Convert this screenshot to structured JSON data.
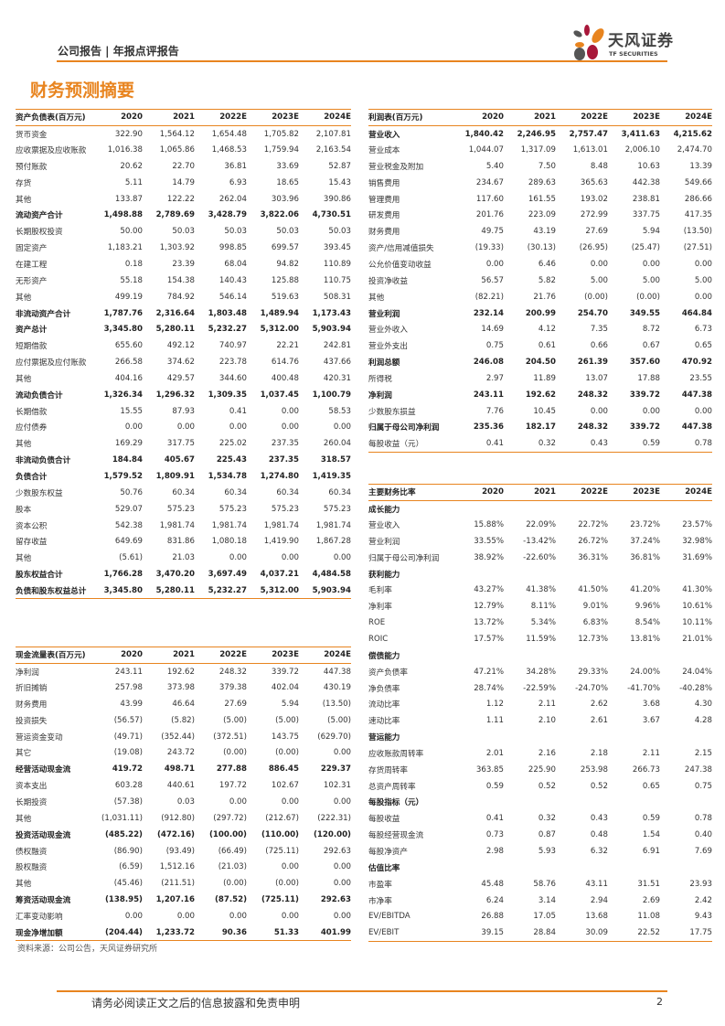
{
  "header": {
    "report_type": "公司报告 | 年报点评报告",
    "logo_cn": "天风证券",
    "logo_en": "TF SECURITIES"
  },
  "title": "财务预测摘要",
  "years": [
    "2020",
    "2021",
    "2022E",
    "2023E",
    "2024E"
  ],
  "balance_sheet": {
    "title": "资产负债表(百万元)",
    "rows": [
      {
        "label": "货币资金",
        "values": [
          "322.90",
          "1,564.12",
          "1,654.48",
          "1,705.82",
          "2,107.81"
        ]
      },
      {
        "label": "应收票据及应收账款",
        "values": [
          "1,016.38",
          "1,065.86",
          "1,468.53",
          "1,759.94",
          "2,163.54"
        ]
      },
      {
        "label": "预付账款",
        "values": [
          "20.62",
          "22.70",
          "36.81",
          "33.69",
          "52.87"
        ]
      },
      {
        "label": "存货",
        "values": [
          "5.11",
          "14.79",
          "6.93",
          "18.65",
          "15.43"
        ]
      },
      {
        "label": "其他",
        "values": [
          "133.87",
          "122.22",
          "262.04",
          "303.96",
          "390.86"
        ]
      },
      {
        "label": "流动资产合计",
        "bold": true,
        "values": [
          "1,498.88",
          "2,789.69",
          "3,428.79",
          "3,822.06",
          "4,730.51"
        ]
      },
      {
        "label": "长期股权投资",
        "values": [
          "50.00",
          "50.03",
          "50.03",
          "50.03",
          "50.03"
        ]
      },
      {
        "label": "固定资产",
        "values": [
          "1,183.21",
          "1,303.92",
          "998.85",
          "699.57",
          "393.45"
        ]
      },
      {
        "label": "在建工程",
        "values": [
          "0.18",
          "23.39",
          "68.04",
          "94.82",
          "110.89"
        ]
      },
      {
        "label": "无形资产",
        "values": [
          "55.18",
          "154.38",
          "140.43",
          "125.88",
          "110.75"
        ]
      },
      {
        "label": "其他",
        "values": [
          "499.19",
          "784.92",
          "546.14",
          "519.63",
          "508.31"
        ]
      },
      {
        "label": "非流动资产合计",
        "bold": true,
        "values": [
          "1,787.76",
          "2,316.64",
          "1,803.48",
          "1,489.94",
          "1,173.43"
        ]
      },
      {
        "label": "资产总计",
        "bold": true,
        "values": [
          "3,345.80",
          "5,280.11",
          "5,232.27",
          "5,312.00",
          "5,903.94"
        ]
      },
      {
        "label": "短期借款",
        "values": [
          "655.60",
          "492.12",
          "740.97",
          "22.21",
          "242.81"
        ]
      },
      {
        "label": "应付票据及应付账款",
        "values": [
          "266.58",
          "374.62",
          "223.78",
          "614.76",
          "437.66"
        ]
      },
      {
        "label": "其他",
        "values": [
          "404.16",
          "429.57",
          "344.60",
          "400.48",
          "420.31"
        ]
      },
      {
        "label": "流动负债合计",
        "bold": true,
        "values": [
          "1,326.34",
          "1,296.32",
          "1,309.35",
          "1,037.45",
          "1,100.79"
        ]
      },
      {
        "label": "长期借款",
        "values": [
          "15.55",
          "87.93",
          "0.41",
          "0.00",
          "58.53"
        ]
      },
      {
        "label": "应付债券",
        "values": [
          "0.00",
          "0.00",
          "0.00",
          "0.00",
          "0.00"
        ]
      },
      {
        "label": "其他",
        "values": [
          "169.29",
          "317.75",
          "225.02",
          "237.35",
          "260.04"
        ]
      },
      {
        "label": "非流动负债合计",
        "bold": true,
        "values": [
          "184.84",
          "405.67",
          "225.43",
          "237.35",
          "318.57"
        ]
      },
      {
        "label": "负债合计",
        "bold": true,
        "values": [
          "1,579.52",
          "1,809.91",
          "1,534.78",
          "1,274.80",
          "1,419.35"
        ]
      },
      {
        "label": "少数股东权益",
        "values": [
          "50.76",
          "60.34",
          "60.34",
          "60.34",
          "60.34"
        ]
      },
      {
        "label": "股本",
        "values": [
          "529.07",
          "575.23",
          "575.23",
          "575.23",
          "575.23"
        ]
      },
      {
        "label": "资本公积",
        "values": [
          "542.38",
          "1,981.74",
          "1,981.74",
          "1,981.74",
          "1,981.74"
        ]
      },
      {
        "label": "留存收益",
        "values": [
          "649.69",
          "831.86",
          "1,080.18",
          "1,419.90",
          "1,867.28"
        ]
      },
      {
        "label": "其他",
        "values": [
          "(5.61)",
          "21.03",
          "0.00",
          "0.00",
          "0.00"
        ]
      },
      {
        "label": "股东权益合计",
        "bold": true,
        "values": [
          "1,766.28",
          "3,470.20",
          "3,697.49",
          "4,037.21",
          "4,484.58"
        ]
      },
      {
        "label": "负债和股东权益总计",
        "bold": true,
        "values": [
          "3,345.80",
          "5,280.11",
          "5,232.27",
          "5,312.00",
          "5,903.94"
        ]
      }
    ]
  },
  "income_statement": {
    "title": "利润表(百万元)",
    "rows": [
      {
        "label": "营业收入",
        "bold": true,
        "values": [
          "1,840.42",
          "2,246.95",
          "2,757.47",
          "3,411.63",
          "4,215.62"
        ]
      },
      {
        "label": "营业成本",
        "values": [
          "1,044.07",
          "1,317.09",
          "1,613.01",
          "2,006.10",
          "2,474.70"
        ]
      },
      {
        "label": "营业税金及附加",
        "values": [
          "5.40",
          "7.50",
          "8.48",
          "10.63",
          "13.39"
        ]
      },
      {
        "label": "销售费用",
        "values": [
          "234.67",
          "289.63",
          "365.63",
          "442.38",
          "549.66"
        ]
      },
      {
        "label": "管理费用",
        "values": [
          "117.60",
          "161.55",
          "193.02",
          "238.81",
          "286.66"
        ]
      },
      {
        "label": "研发费用",
        "values": [
          "201.76",
          "223.09",
          "272.99",
          "337.75",
          "417.35"
        ]
      },
      {
        "label": "财务费用",
        "values": [
          "49.75",
          "43.19",
          "27.69",
          "5.94",
          "(13.50)"
        ]
      },
      {
        "label": "资产/信用减值损失",
        "values": [
          "(19.33)",
          "(30.13)",
          "(26.95)",
          "(25.47)",
          "(27.51)"
        ]
      },
      {
        "label": "公允价值变动收益",
        "values": [
          "0.00",
          "6.46",
          "0.00",
          "0.00",
          "0.00"
        ]
      },
      {
        "label": "投资净收益",
        "values": [
          "56.57",
          "5.82",
          "5.00",
          "5.00",
          "5.00"
        ]
      },
      {
        "label": "其他",
        "values": [
          "(82.21)",
          "21.76",
          "(0.00)",
          "(0.00)",
          "0.00"
        ]
      },
      {
        "label": "营业利润",
        "bold": true,
        "values": [
          "232.14",
          "200.99",
          "254.70",
          "349.55",
          "464.84"
        ]
      },
      {
        "label": "营业外收入",
        "values": [
          "14.69",
          "4.12",
          "7.35",
          "8.72",
          "6.73"
        ]
      },
      {
        "label": "营业外支出",
        "values": [
          "0.75",
          "0.61",
          "0.66",
          "0.67",
          "0.65"
        ]
      },
      {
        "label": "利润总额",
        "bold": true,
        "values": [
          "246.08",
          "204.50",
          "261.39",
          "357.60",
          "470.92"
        ]
      },
      {
        "label": "所得税",
        "values": [
          "2.97",
          "11.89",
          "13.07",
          "17.88",
          "23.55"
        ]
      },
      {
        "label": "净利润",
        "bold": true,
        "values": [
          "243.11",
          "192.62",
          "248.32",
          "339.72",
          "447.38"
        ]
      },
      {
        "label": "少数股东损益",
        "values": [
          "7.76",
          "10.45",
          "0.00",
          "0.00",
          "0.00"
        ]
      },
      {
        "label": "归属于母公司净利润",
        "bold": true,
        "values": [
          "235.36",
          "182.17",
          "248.32",
          "339.72",
          "447.38"
        ]
      },
      {
        "label": "每股收益（元）",
        "values": [
          "0.41",
          "0.32",
          "0.43",
          "0.59",
          "0.78"
        ]
      }
    ]
  },
  "cash_flow": {
    "title": "现金流量表(百万元)",
    "rows": [
      {
        "label": "净利润",
        "values": [
          "243.11",
          "192.62",
          "248.32",
          "339.72",
          "447.38"
        ]
      },
      {
        "label": "折旧摊销",
        "values": [
          "257.98",
          "373.98",
          "379.38",
          "402.04",
          "430.19"
        ]
      },
      {
        "label": "财务费用",
        "values": [
          "43.99",
          "46.64",
          "27.69",
          "5.94",
          "(13.50)"
        ]
      },
      {
        "label": "投资损失",
        "values": [
          "(56.57)",
          "(5.82)",
          "(5.00)",
          "(5.00)",
          "(5.00)"
        ]
      },
      {
        "label": "营运资金变动",
        "values": [
          "(49.71)",
          "(352.44)",
          "(372.51)",
          "143.75",
          "(629.70)"
        ]
      },
      {
        "label": "其它",
        "values": [
          "(19.08)",
          "243.72",
          "(0.00)",
          "(0.00)",
          "0.00"
        ]
      },
      {
        "label": "经营活动现金流",
        "bold": true,
        "values": [
          "419.72",
          "498.71",
          "277.88",
          "886.45",
          "229.37"
        ]
      },
      {
        "label": "资本支出",
        "values": [
          "603.28",
          "440.61",
          "197.72",
          "102.67",
          "102.31"
        ]
      },
      {
        "label": "长期投资",
        "values": [
          "(57.38)",
          "0.03",
          "0.00",
          "0.00",
          "0.00"
        ]
      },
      {
        "label": "其他",
        "values": [
          "(1,031.11)",
          "(912.80)",
          "(297.72)",
          "(212.67)",
          "(222.31)"
        ]
      },
      {
        "label": "投资活动现金流",
        "bold": true,
        "values": [
          "(485.22)",
          "(472.16)",
          "(100.00)",
          "(110.00)",
          "(120.00)"
        ]
      },
      {
        "label": "债权融资",
        "values": [
          "(86.90)",
          "(93.49)",
          "(66.49)",
          "(725.11)",
          "292.63"
        ]
      },
      {
        "label": "股权融资",
        "values": [
          "(6.59)",
          "1,512.16",
          "(21.03)",
          "0.00",
          "0.00"
        ]
      },
      {
        "label": "其他",
        "values": [
          "(45.46)",
          "(211.51)",
          "(0.00)",
          "(0.00)",
          "0.00"
        ]
      },
      {
        "label": "筹资活动现金流",
        "bold": true,
        "values": [
          "(138.95)",
          "1,207.16",
          "(87.52)",
          "(725.11)",
          "292.63"
        ]
      },
      {
        "label": "汇率变动影响",
        "values": [
          "0.00",
          "0.00",
          "0.00",
          "0.00",
          "0.00"
        ]
      },
      {
        "label": "现金净增加额",
        "bold": true,
        "values": [
          "(204.44)",
          "1,233.72",
          "90.36",
          "51.33",
          "401.99"
        ]
      }
    ]
  },
  "ratios": {
    "title": "主要财务比率",
    "rows": [
      {
        "label": "成长能力",
        "bold": true,
        "values": [
          "",
          "",
          "",
          "",
          ""
        ]
      },
      {
        "label": "营业收入",
        "values": [
          "15.88%",
          "22.09%",
          "22.72%",
          "23.72%",
          "23.57%"
        ]
      },
      {
        "label": "营业利润",
        "values": [
          "33.55%",
          "-13.42%",
          "26.72%",
          "37.24%",
          "32.98%"
        ]
      },
      {
        "label": "归属于母公司净利润",
        "values": [
          "38.92%",
          "-22.60%",
          "36.31%",
          "36.81%",
          "31.69%"
        ]
      },
      {
        "label": "获利能力",
        "bold": true,
        "values": [
          "",
          "",
          "",
          "",
          ""
        ]
      },
      {
        "label": "毛利率",
        "values": [
          "43.27%",
          "41.38%",
          "41.50%",
          "41.20%",
          "41.30%"
        ]
      },
      {
        "label": "净利率",
        "values": [
          "12.79%",
          "8.11%",
          "9.01%",
          "9.96%",
          "10.61%"
        ]
      },
      {
        "label": "ROE",
        "values": [
          "13.72%",
          "5.34%",
          "6.83%",
          "8.54%",
          "10.11%"
        ]
      },
      {
        "label": "ROIC",
        "values": [
          "17.57%",
          "11.59%",
          "12.73%",
          "13.81%",
          "21.01%"
        ]
      },
      {
        "label": "偿债能力",
        "bold": true,
        "values": [
          "",
          "",
          "",
          "",
          ""
        ]
      },
      {
        "label": "资产负债率",
        "values": [
          "47.21%",
          "34.28%",
          "29.33%",
          "24.00%",
          "24.04%"
        ]
      },
      {
        "label": "净负债率",
        "values": [
          "28.74%",
          "-22.59%",
          "-24.70%",
          "-41.70%",
          "-40.28%"
        ]
      },
      {
        "label": "流动比率",
        "values": [
          "1.12",
          "2.11",
          "2.62",
          "3.68",
          "4.30"
        ]
      },
      {
        "label": "速动比率",
        "values": [
          "1.11",
          "2.10",
          "2.61",
          "3.67",
          "4.28"
        ]
      },
      {
        "label": "营运能力",
        "bold": true,
        "values": [
          "",
          "",
          "",
          "",
          ""
        ]
      },
      {
        "label": "应收账款周转率",
        "values": [
          "2.01",
          "2.16",
          "2.18",
          "2.11",
          "2.15"
        ]
      },
      {
        "label": "存货周转率",
        "values": [
          "363.85",
          "225.90",
          "253.98",
          "266.73",
          "247.38"
        ]
      },
      {
        "label": "总资产周转率",
        "values": [
          "0.59",
          "0.52",
          "0.52",
          "0.65",
          "0.75"
        ]
      },
      {
        "label": "每股指标（元）",
        "bold": true,
        "values": [
          "",
          "",
          "",
          "",
          ""
        ]
      },
      {
        "label": "每股收益",
        "values": [
          "0.41",
          "0.32",
          "0.43",
          "0.59",
          "0.78"
        ]
      },
      {
        "label": "每股经营现金流",
        "values": [
          "0.73",
          "0.87",
          "0.48",
          "1.54",
          "0.40"
        ]
      },
      {
        "label": "每股净资产",
        "values": [
          "2.98",
          "5.93",
          "6.32",
          "6.91",
          "7.69"
        ]
      },
      {
        "label": "估值比率",
        "bold": true,
        "values": [
          "",
          "",
          "",
          "",
          ""
        ]
      },
      {
        "label": "市盈率",
        "values": [
          "45.48",
          "58.76",
          "43.11",
          "31.51",
          "23.93"
        ]
      },
      {
        "label": "市净率",
        "values": [
          "6.24",
          "3.14",
          "2.94",
          "2.69",
          "2.42"
        ]
      },
      {
        "label": "EV/EBITDA",
        "values": [
          "26.88",
          "17.05",
          "13.68",
          "11.08",
          "9.43"
        ]
      },
      {
        "label": "EV/EBIT",
        "values": [
          "39.15",
          "28.84",
          "30.09",
          "22.52",
          "17.75"
        ]
      }
    ]
  },
  "source": "资料来源：公司公告，天风证券研究所",
  "footer": {
    "disclaimer": "请务必阅读正文之后的信息披露和免责申明",
    "page": "2"
  },
  "colors": {
    "accent": "#e8841f",
    "logo_red": "#a8173a",
    "logo_orange": "#e8841f",
    "logo_gray": "#555555"
  }
}
